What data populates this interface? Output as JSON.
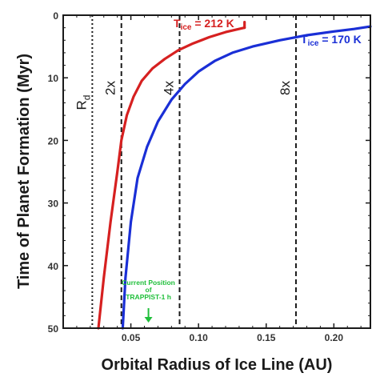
{
  "chart_data": {
    "type": "line",
    "xlabel": "Orbital Radius of Ice Line (AU)",
    "ylabel": "Time of Planet Formation (Myr)",
    "xlim": [
      0.0,
      0.227
    ],
    "ylim": [
      50,
      0
    ],
    "y_inverted": true,
    "grid": false,
    "x_ticks": [
      {
        "value": 0.05,
        "label": "0.05"
      },
      {
        "value": 0.1,
        "label": "0.10"
      },
      {
        "value": 0.15,
        "label": "0.15"
      },
      {
        "value": 0.2,
        "label": "0.20"
      }
    ],
    "y_ticks": [
      {
        "value": 0,
        "label": "0"
      },
      {
        "value": 10,
        "label": "10"
      },
      {
        "value": 20,
        "label": "20"
      },
      {
        "value": 30,
        "label": "30"
      },
      {
        "value": 40,
        "label": "40"
      },
      {
        "value": 50,
        "label": "50"
      }
    ],
    "series": [
      {
        "name": "T_ice = 212 K",
        "label_main": "T",
        "label_sub": "ice",
        "label_rest": " = 212 K",
        "color": "#d62020",
        "x": [
          0.026,
          0.03,
          0.035,
          0.04,
          0.043,
          0.047,
          0.052,
          0.058,
          0.066,
          0.075,
          0.085,
          0.096,
          0.108,
          0.12,
          0.134
        ],
        "y": [
          50,
          42,
          33,
          25,
          20,
          16,
          13,
          10.5,
          8.5,
          7,
          5.6,
          4.5,
          3.5,
          2.7,
          2.0
        ]
      },
      {
        "name": "T_ice = 170 K",
        "label_main": "T",
        "label_sub": "ice",
        "label_rest": " = 170 K",
        "color": "#1a2fd6",
        "x": [
          0.044,
          0.046,
          0.05,
          0.055,
          0.062,
          0.07,
          0.08,
          0.09,
          0.1,
          0.112,
          0.125,
          0.14,
          0.16,
          0.18,
          0.2,
          0.215,
          0.227
        ],
        "y": [
          50,
          42,
          33,
          26,
          21,
          17,
          13.5,
          11,
          9,
          7.3,
          6,
          5,
          4,
          3.2,
          2.6,
          2.2,
          1.8
        ]
      }
    ],
    "vertical_lines": [
      {
        "x": 0.0215,
        "label": "R",
        "sub": "d",
        "style": "dotted"
      },
      {
        "x": 0.043,
        "label": "2x",
        "sub": "",
        "style": "dashed"
      },
      {
        "x": 0.086,
        "label": "4x",
        "sub": "",
        "style": "dashed"
      },
      {
        "x": 0.172,
        "label": "8x",
        "sub": "",
        "style": "dashed"
      }
    ],
    "annotation": {
      "lines": [
        "Current Position",
        "of",
        "TRAPPIST-1 h"
      ],
      "x": 0.063,
      "color": "#1fbf3a"
    }
  }
}
